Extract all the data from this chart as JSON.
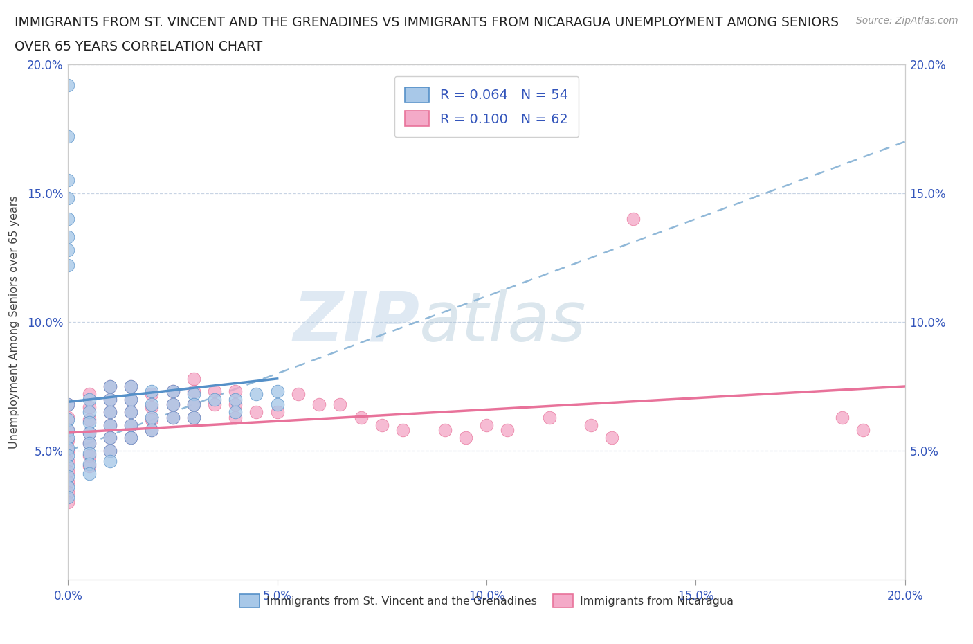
{
  "title_line1": "IMMIGRANTS FROM ST. VINCENT AND THE GRENADINES VS IMMIGRANTS FROM NICARAGUA UNEMPLOYMENT AMONG SENIORS",
  "title_line2": "OVER 65 YEARS CORRELATION CHART",
  "source": "Source: ZipAtlas.com",
  "ylabel": "Unemployment Among Seniors over 65 years",
  "xlim": [
    0.0,
    0.2
  ],
  "ylim": [
    0.0,
    0.2
  ],
  "xtick_labels": [
    "0.0%",
    "5.0%",
    "10.0%",
    "15.0%",
    "20.0%"
  ],
  "xtick_vals": [
    0.0,
    0.05,
    0.1,
    0.15,
    0.2
  ],
  "ytick_labels": [
    "5.0%",
    "10.0%",
    "15.0%",
    "20.0%"
  ],
  "ytick_vals": [
    0.05,
    0.1,
    0.15,
    0.2
  ],
  "color_blue": "#a8c8e8",
  "color_pink": "#f4aac8",
  "line_color_blue": "#5590c8",
  "line_color_pink": "#e8729a",
  "trendline_blue_dashed_color": "#90b8d8",
  "R_blue": 0.064,
  "N_blue": 54,
  "R_pink": 0.1,
  "N_pink": 62,
  "legend_label_blue": "Immigrants from St. Vincent and the Grenadines",
  "legend_label_pink": "Immigrants from Nicaragua",
  "watermark_zip": "ZIP",
  "watermark_atlas": "atlas",
  "blue_solid_line": [
    [
      0.0,
      0.069
    ],
    [
      0.05,
      0.078
    ]
  ],
  "blue_dashed_line": [
    [
      0.0,
      0.05
    ],
    [
      0.2,
      0.17
    ]
  ],
  "pink_solid_line": [
    [
      0.0,
      0.057
    ],
    [
      0.2,
      0.075
    ]
  ],
  "blue_scatter_x": [
    0.0,
    0.0,
    0.0,
    0.0,
    0.0,
    0.0,
    0.0,
    0.0,
    0.0,
    0.0,
    0.0,
    0.0,
    0.005,
    0.005,
    0.005,
    0.005,
    0.005,
    0.005,
    0.005,
    0.005,
    0.01,
    0.01,
    0.01,
    0.01,
    0.01,
    0.01,
    0.01,
    0.015,
    0.015,
    0.015,
    0.015,
    0.015,
    0.02,
    0.02,
    0.02,
    0.02,
    0.025,
    0.025,
    0.025,
    0.03,
    0.03,
    0.03,
    0.035,
    0.04,
    0.04,
    0.045,
    0.05,
    0.05,
    0.0,
    0.0,
    0.0,
    0.0,
    0.0,
    0.0
  ],
  "blue_scatter_y": [
    0.068,
    0.062,
    0.058,
    0.055,
    0.051,
    0.048,
    0.044,
    0.04,
    0.036,
    0.032,
    0.192,
    0.172,
    0.07,
    0.065,
    0.061,
    0.057,
    0.053,
    0.049,
    0.045,
    0.041,
    0.075,
    0.07,
    0.065,
    0.06,
    0.055,
    0.05,
    0.046,
    0.075,
    0.07,
    0.065,
    0.06,
    0.055,
    0.073,
    0.068,
    0.063,
    0.058,
    0.073,
    0.068,
    0.063,
    0.072,
    0.068,
    0.063,
    0.07,
    0.07,
    0.065,
    0.072,
    0.073,
    0.068,
    0.155,
    0.148,
    0.14,
    0.133,
    0.128,
    0.122
  ],
  "pink_scatter_x": [
    0.0,
    0.0,
    0.0,
    0.0,
    0.0,
    0.0,
    0.0,
    0.0,
    0.0,
    0.0,
    0.005,
    0.005,
    0.005,
    0.005,
    0.005,
    0.005,
    0.005,
    0.01,
    0.01,
    0.01,
    0.01,
    0.01,
    0.01,
    0.015,
    0.015,
    0.015,
    0.015,
    0.015,
    0.02,
    0.02,
    0.02,
    0.02,
    0.025,
    0.025,
    0.025,
    0.03,
    0.03,
    0.03,
    0.03,
    0.035,
    0.035,
    0.04,
    0.04,
    0.04,
    0.045,
    0.05,
    0.055,
    0.06,
    0.065,
    0.07,
    0.075,
    0.08,
    0.09,
    0.095,
    0.1,
    0.105,
    0.115,
    0.125,
    0.13,
    0.135,
    0.185,
    0.19
  ],
  "pink_scatter_y": [
    0.068,
    0.063,
    0.058,
    0.054,
    0.05,
    0.046,
    0.042,
    0.038,
    0.034,
    0.03,
    0.072,
    0.067,
    0.062,
    0.057,
    0.053,
    0.048,
    0.044,
    0.075,
    0.07,
    0.065,
    0.06,
    0.055,
    0.05,
    0.075,
    0.07,
    0.065,
    0.06,
    0.055,
    0.072,
    0.067,
    0.062,
    0.058,
    0.073,
    0.068,
    0.063,
    0.078,
    0.073,
    0.068,
    0.063,
    0.073,
    0.068,
    0.073,
    0.068,
    0.063,
    0.065,
    0.065,
    0.072,
    0.068,
    0.068,
    0.063,
    0.06,
    0.058,
    0.058,
    0.055,
    0.06,
    0.058,
    0.063,
    0.06,
    0.055,
    0.14,
    0.063,
    0.058
  ]
}
